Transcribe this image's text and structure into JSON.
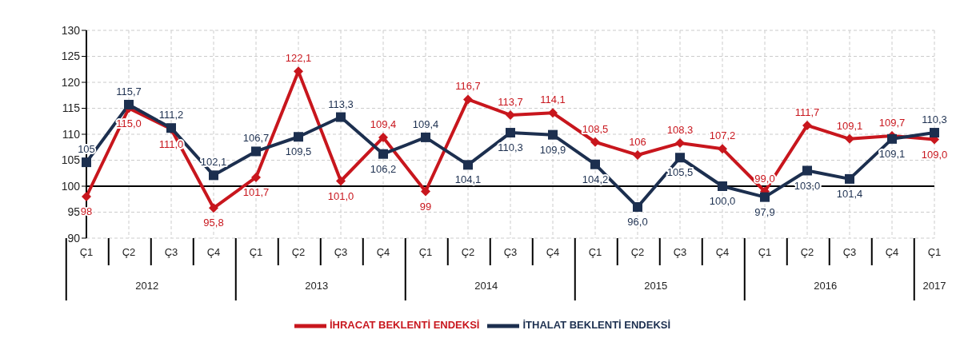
{
  "chart_data": {
    "type": "line",
    "categories": [
      "Ç1",
      "Ç2",
      "Ç3",
      "Ç4",
      "Ç1",
      "Ç2",
      "Ç3",
      "Ç4",
      "Ç1",
      "Ç2",
      "Ç3",
      "Ç4",
      "Ç1",
      "Ç2",
      "Ç3",
      "Ç4",
      "Ç1",
      "Ç2",
      "Ç3",
      "Ç4",
      "Ç1"
    ],
    "annotations": [
      "2012",
      "2013",
      "2014",
      "2015",
      "2016",
      "2017"
    ],
    "series": [
      {
        "name": "İHRACAT BEKLENTİ ENDEKSİ",
        "color": "#c8161d",
        "marker": "diamond",
        "values": [
          98,
          115.0,
          111.0,
          95.8,
          101.7,
          122.1,
          101.0,
          109.4,
          99,
          116.7,
          113.7,
          114.1,
          108.5,
          106,
          108.3,
          107.2,
          99.0,
          111.7,
          109.1,
          109.7,
          109.0
        ],
        "value_labels": [
          "98",
          "115,0",
          "111,0",
          "95,8",
          "101,7",
          "122,1",
          "101,0",
          "109,4",
          "99",
          "116,7",
          "113,7",
          "114,1",
          "108,5",
          "106",
          "108,3",
          "107,2",
          "99,0",
          "111,7",
          "109,1",
          "109,7",
          "109,0"
        ]
      },
      {
        "name": "İTHALAT BEKLENTİ ENDEKSİ",
        "color": "#1c2f4f",
        "marker": "square",
        "values": [
          104.6,
          115.7,
          111.2,
          102.1,
          106.7,
          109.5,
          113.3,
          106.2,
          109.4,
          104.1,
          110.3,
          109.9,
          104.2,
          96.0,
          105.5,
          100.0,
          97.9,
          103.0,
          101.4,
          109.1,
          110.3
        ],
        "value_labels": [
          "105",
          "115,7",
          "111,2",
          "102,1",
          "106,7",
          "109,5",
          "113,3",
          "106,2",
          "109,4",
          "104,1",
          "110,3",
          "109,9",
          "104,2",
          "96,0",
          "105,5",
          "100,0",
          "97,9",
          "103,0",
          "101,4",
          "109,1",
          "110,3"
        ]
      }
    ],
    "ylim": [
      90,
      130
    ],
    "yticks": [
      90,
      95,
      100,
      105,
      110,
      115,
      120,
      125,
      130
    ],
    "ref_lines": [
      {
        "axis": "y",
        "value": 100,
        "color": "#000000"
      }
    ],
    "grid": true,
    "legend": "bottom",
    "line_style": "solid"
  }
}
